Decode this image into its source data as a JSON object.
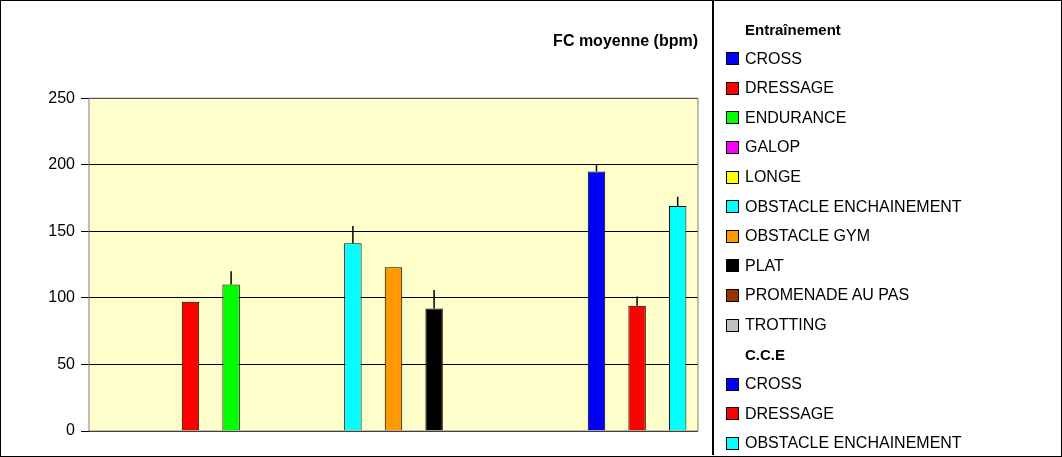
{
  "chart_data": {
    "type": "bar",
    "title": "FC moyenne (bpm)",
    "categories": [
      null
    ],
    "ylim": [
      0,
      250
    ],
    "yticks": [
      0,
      50,
      100,
      150,
      200,
      250
    ],
    "grid": "y",
    "legend": "right",
    "series": [
      {
        "name": "Entraînement",
        "values": [
          null
        ]
      },
      {
        "name": "CROSS",
        "color": "#0000ff",
        "values": [
          null
        ]
      },
      {
        "name": "DRESSAGE",
        "color": "#ff0000",
        "values": [
          97
        ]
      },
      {
        "name": "ENDURANCE",
        "color": "#00ff00",
        "values": [
          110
        ],
        "errors": [
          [
            110,
            120
          ]
        ]
      },
      {
        "name": "GALOP",
        "color": "#ff00ff",
        "values": [
          null
        ]
      },
      {
        "name": "LONGE",
        "color": "#ffff00",
        "values": [
          null
        ]
      },
      {
        "name": "OBSTACLE ENCHAINEMENT",
        "color": "#00ffff",
        "values": [
          141
        ],
        "errors": [
          [
            141,
            154
          ]
        ]
      },
      {
        "name": "OBSTACLE GYM",
        "color": "#ff9900",
        "values": [
          123
        ]
      },
      {
        "name": "PLAT",
        "color": "#000000",
        "values": [
          92
        ],
        "errors": [
          [
            92,
            106
          ]
        ]
      },
      {
        "name": "PROMENADE AU PAS",
        "color": "#993300",
        "values": [
          null
        ]
      },
      {
        "name": "TROTTING",
        "color": "#c0c0c0",
        "values": [
          null
        ]
      },
      {
        "name": "C.C.E",
        "values": [
          null
        ]
      },
      {
        "name": "CROSS",
        "color": "#0000ff",
        "values": [
          195
        ],
        "errors": [
          [
            195,
            200
          ]
        ]
      },
      {
        "name": "DRESSAGE",
        "color": "#ff0000",
        "values": [
          94
        ],
        "errors": [
          [
            94,
            101
          ]
        ]
      },
      {
        "name": "OBSTACLE ENCHAINEMENT",
        "color": "#00ffff",
        "values": [
          169
        ],
        "errors": [
          [
            169,
            176
          ]
        ]
      }
    ]
  }
}
